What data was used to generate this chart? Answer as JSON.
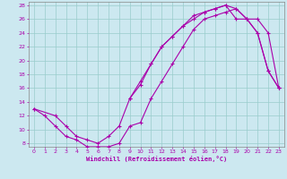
{
  "xlabel": "Windchill (Refroidissement éolien,°C)",
  "bg_color": "#cce8f0",
  "line_color": "#aa00aa",
  "grid_color": "#99cccc",
  "xlim": [
    -0.5,
    23.5
  ],
  "ylim": [
    7.5,
    28.5
  ],
  "xticks": [
    0,
    1,
    2,
    3,
    4,
    5,
    6,
    7,
    8,
    9,
    10,
    11,
    12,
    13,
    14,
    15,
    16,
    17,
    18,
    19,
    20,
    21,
    22,
    23
  ],
  "yticks": [
    8,
    10,
    12,
    14,
    16,
    18,
    20,
    22,
    24,
    26,
    28
  ],
  "line1_x": [
    0,
    1,
    2,
    3,
    4,
    5,
    6,
    7,
    8,
    9,
    10,
    11,
    12,
    13,
    14,
    15,
    16,
    17,
    18,
    19,
    20,
    21,
    22,
    23
  ],
  "line1_y": [
    13,
    12,
    10.5,
    9.0,
    8.5,
    7.5,
    7.5,
    7.5,
    8.0,
    10.5,
    11.0,
    14.5,
    17.0,
    19.5,
    22.0,
    24.5,
    26.0,
    26.5,
    27.0,
    27.5,
    26.0,
    24.0,
    18.5,
    16.0
  ],
  "line2_x": [
    0,
    2,
    3,
    4,
    5,
    6,
    7,
    8,
    9,
    10,
    11,
    12,
    13,
    14,
    15,
    16,
    17,
    18,
    19,
    20,
    21,
    22,
    23
  ],
  "line2_y": [
    13,
    12,
    10.5,
    9.0,
    8.5,
    8.0,
    9.0,
    10.5,
    14.5,
    17.0,
    19.5,
    22.0,
    23.5,
    25.0,
    26.0,
    27.0,
    27.5,
    28.0,
    26.0,
    26.0,
    24.0,
    18.5,
    16.0
  ],
  "line3_x": [
    9,
    10,
    11,
    12,
    13,
    14,
    15,
    16,
    17,
    18,
    19,
    20,
    21,
    22,
    23
  ],
  "line3_y": [
    14.5,
    16.5,
    19.5,
    22.0,
    23.5,
    25.0,
    26.5,
    27.0,
    27.5,
    28.0,
    27.5,
    26.0,
    26.0,
    24.0,
    16.0
  ]
}
